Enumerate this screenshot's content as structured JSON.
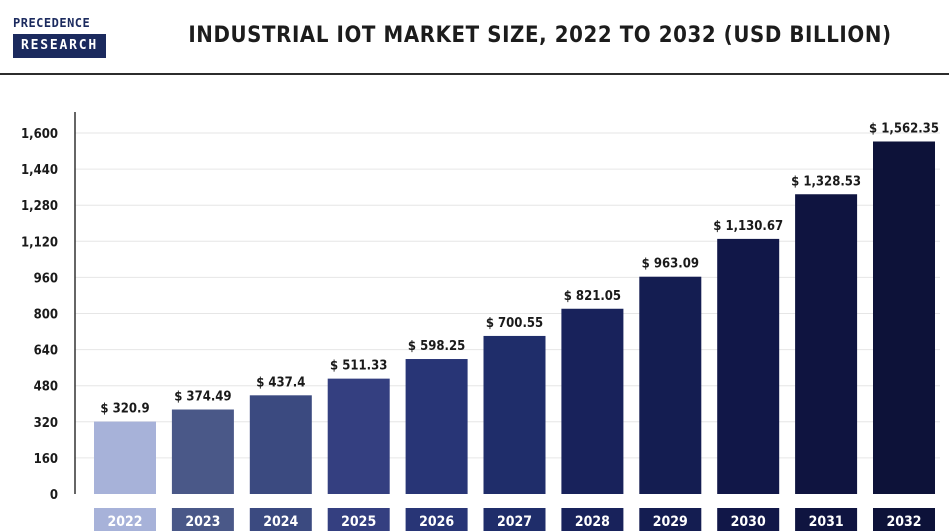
{
  "brand": {
    "line1": "PRECEDENCE",
    "line2": "RESEARCH",
    "color": "#1b2a5e"
  },
  "header": {
    "title": "INDUSTRIAL IOT MARKET SIZE, 2022 TO 2032 (USD BILLION)"
  },
  "chart_data": {
    "type": "bar",
    "title": "INDUSTRIAL IOT MARKET SIZE, 2022 TO 2032 (USD BILLION)",
    "xlabel": "",
    "ylabel": "",
    "categories": [
      "2022",
      "2023",
      "2024",
      "2025",
      "2026",
      "2027",
      "2028",
      "2029",
      "2030",
      "2031",
      "2032"
    ],
    "values": [
      320.9,
      374.49,
      437.4,
      511.33,
      598.25,
      700.55,
      821.05,
      963.09,
      1130.67,
      1328.53,
      1562.35
    ],
    "value_labels": [
      "$ 320.9",
      "$ 374.49",
      "$ 437.4",
      "$ 511.33",
      "$ 598.25",
      "$ 700.55",
      "$ 821.05",
      "$ 963.09",
      "$ 1,130.67",
      "$ 1,328.53",
      "$ 1,562.35"
    ],
    "colors": [
      "#a7b2d9",
      "#4a5888",
      "#3b4a80",
      "#343f80",
      "#283576",
      "#1f2d6a",
      "#18225b",
      "#141d51",
      "#111748",
      "#0f1440",
      "#0d1239"
    ],
    "ylim": [
      0,
      1600
    ],
    "yticks": [
      0,
      160,
      320,
      480,
      640,
      800,
      960,
      1120,
      1280,
      1440,
      1600
    ],
    "ytick_labels": [
      "0",
      "160",
      "320",
      "480",
      "640",
      "800",
      "960",
      "1,120",
      "1,280",
      "1,440",
      "1,600"
    ],
    "grid": true,
    "legend": "none"
  }
}
